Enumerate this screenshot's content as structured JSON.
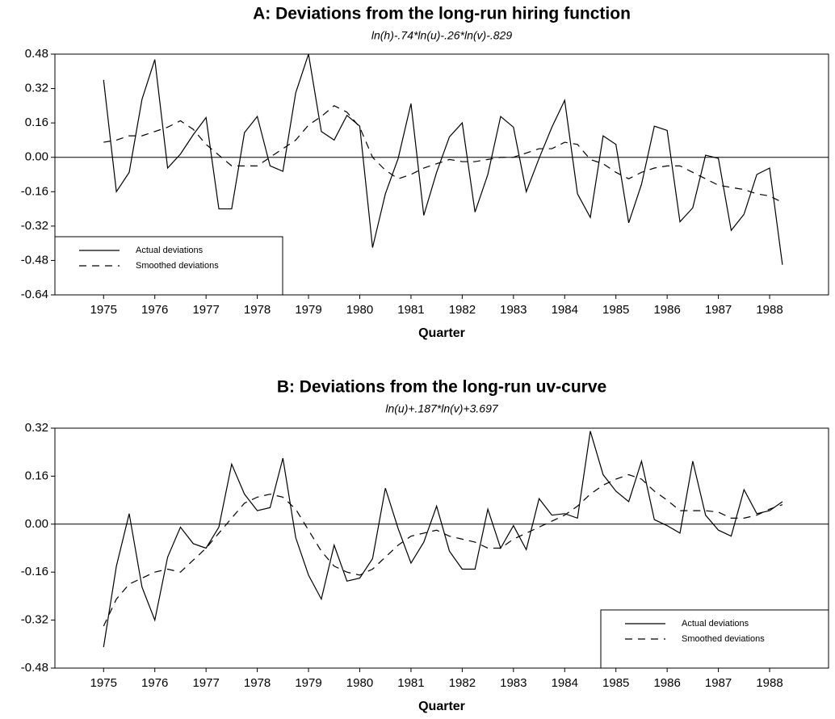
{
  "chart_data": [
    {
      "type": "line",
      "title": "A: Deviations from the long-run hiring function",
      "subtitle": "ln(h)-.74*ln(u)-.26*ln(v)-.829",
      "xlabel": "Quarter",
      "x": [
        1975,
        1975.25,
        1975.5,
        1975.75,
        1976,
        1976.25,
        1976.5,
        1976.75,
        1977,
        1977.25,
        1977.5,
        1977.75,
        1978,
        1978.25,
        1978.5,
        1978.75,
        1979,
        1979.25,
        1979.5,
        1979.75,
        1980,
        1980.25,
        1980.5,
        1980.75,
        1981,
        1981.25,
        1981.5,
        1981.75,
        1982,
        1982.25,
        1982.5,
        1982.75,
        1983,
        1983.25,
        1983.5,
        1983.75,
        1984,
        1984.25,
        1984.5,
        1984.75,
        1985,
        1985.25,
        1985.5,
        1985.75,
        1986,
        1986.25,
        1986.5,
        1986.75,
        1987,
        1987.25,
        1987.5,
        1987.75,
        1988,
        1988.25
      ],
      "series": [
        {
          "name": "Actual deviations",
          "color": "#000000",
          "dashed": false,
          "values": [
            0.36,
            -0.16,
            -0.07,
            0.27,
            0.455,
            -0.05,
            0.015,
            0.105,
            0.185,
            -0.24,
            -0.24,
            0.115,
            0.19,
            -0.04,
            -0.065,
            0.3,
            0.48,
            0.12,
            0.08,
            0.195,
            0.145,
            -0.42,
            -0.17,
            -0.005,
            0.25,
            -0.27,
            -0.07,
            0.095,
            0.16,
            -0.255,
            -0.08,
            0.19,
            0.14,
            -0.16,
            -0.005,
            0.14,
            0.265,
            -0.17,
            -0.28,
            0.1,
            0.06,
            -0.305,
            -0.125,
            0.145,
            0.125,
            -0.3,
            -0.235,
            0.01,
            -0.005,
            -0.34,
            -0.265,
            -0.08,
            -0.05,
            -0.5
          ]
        },
        {
          "name": "Smoothed deviations",
          "color": "#000000",
          "dashed": true,
          "values": [
            0.07,
            0.08,
            0.1,
            0.1,
            0.12,
            0.14,
            0.17,
            0.13,
            0.06,
            0.01,
            -0.04,
            -0.04,
            -0.04,
            0,
            0.04,
            0.08,
            0.15,
            0.19,
            0.24,
            0.21,
            0.14,
            0,
            -0.06,
            -0.1,
            -0.08,
            -0.05,
            -0.03,
            -0.01,
            -0.02,
            -0.02,
            -0.01,
            0,
            0,
            0.02,
            0.04,
            0.04,
            0.07,
            0.06,
            -0.01,
            -0.03,
            -0.07,
            -0.1,
            -0.07,
            -0.05,
            -0.04,
            -0.04,
            -0.07,
            -0.1,
            -0.13,
            -0.14,
            -0.15,
            -0.17,
            -0.18,
            -0.21
          ]
        }
      ],
      "xlim": [
        1974.05,
        1989.15
      ],
      "xticks": [
        1975,
        1976,
        1977,
        1978,
        1979,
        1980,
        1981,
        1982,
        1983,
        1984,
        1985,
        1986,
        1987,
        1988
      ],
      "ylim": [
        -0.64,
        0.48
      ],
      "yticks": [
        -0.64,
        -0.48,
        -0.32,
        -0.16,
        {
          "value": 0,
          "label": "0.00"
        },
        0.16,
        0.32,
        0.48
      ],
      "reference_line": 0,
      "legend": "lower left"
    },
    {
      "type": "line",
      "title": "B: Deviations from the long-run uv-curve",
      "subtitle": "ln(u)+.187*ln(v)+3.697",
      "xlabel": "Quarter",
      "x": [
        1975,
        1975.25,
        1975.5,
        1975.75,
        1976,
        1976.25,
        1976.5,
        1976.75,
        1977,
        1977.25,
        1977.5,
        1977.75,
        1978,
        1978.25,
        1978.5,
        1978.75,
        1979,
        1979.25,
        1979.5,
        1979.75,
        1980,
        1980.25,
        1980.5,
        1980.75,
        1981,
        1981.25,
        1981.5,
        1981.75,
        1982,
        1982.25,
        1982.5,
        1982.75,
        1983,
        1983.25,
        1983.5,
        1983.75,
        1984,
        1984.25,
        1984.5,
        1984.75,
        1985,
        1985.25,
        1985.5,
        1985.75,
        1986,
        1986.25,
        1986.5,
        1986.75,
        1987,
        1987.25,
        1987.5,
        1987.75,
        1988,
        1988.25
      ],
      "series": [
        {
          "name": "Actual deviations",
          "color": "#000000",
          "dashed": false,
          "values": [
            -0.41,
            -0.14,
            0.035,
            -0.21,
            -0.32,
            -0.11,
            -0.01,
            -0.065,
            -0.08,
            -0.01,
            0.2,
            0.1,
            0.045,
            0.055,
            0.22,
            -0.045,
            -0.17,
            -0.25,
            -0.07,
            -0.19,
            -0.18,
            -0.115,
            0.12,
            -0.015,
            -0.13,
            -0.06,
            0.06,
            -0.09,
            -0.15,
            -0.15,
            0.05,
            -0.08,
            -0.005,
            -0.085,
            0.085,
            0.03,
            0.035,
            0.02,
            0.31,
            0.165,
            0.11,
            0.075,
            0.21,
            0.015,
            -0.005,
            -0.03,
            0.21,
            0.03,
            -0.02,
            -0.04,
            0.115,
            0.035,
            0.045,
            0.075
          ]
        },
        {
          "name": "Smoothed deviations",
          "color": "#000000",
          "dashed": true,
          "values": [
            -0.34,
            -0.25,
            -0.2,
            -0.18,
            -0.16,
            -0.15,
            -0.16,
            -0.12,
            -0.08,
            -0.03,
            0.02,
            0.07,
            0.09,
            0.1,
            0.09,
            0.05,
            -0.02,
            -0.09,
            -0.14,
            -0.16,
            -0.17,
            -0.15,
            -0.11,
            -0.07,
            -0.04,
            -0.03,
            -0.02,
            -0.04,
            -0.05,
            -0.06,
            -0.08,
            -0.08,
            -0.05,
            -0.03,
            -0.01,
            0.01,
            0.03,
            0.06,
            0.1,
            0.13,
            0.15,
            0.165,
            0.15,
            0.11,
            0.08,
            0.045,
            0.045,
            0.045,
            0.04,
            0.02,
            0.02,
            0.03,
            0.05,
            0.065
          ]
        }
      ],
      "xlim": [
        1974.05,
        1989.15
      ],
      "xticks": [
        1975,
        1976,
        1977,
        1978,
        1979,
        1980,
        1981,
        1982,
        1983,
        1984,
        1985,
        1986,
        1987,
        1988
      ],
      "ylim": [
        -0.48,
        0.32
      ],
      "yticks": [
        -0.48,
        -0.32,
        -0.16,
        {
          "value": 0,
          "label": "0.00"
        },
        0.16,
        0.32
      ],
      "reference_line": 0,
      "legend": "lower right"
    }
  ]
}
